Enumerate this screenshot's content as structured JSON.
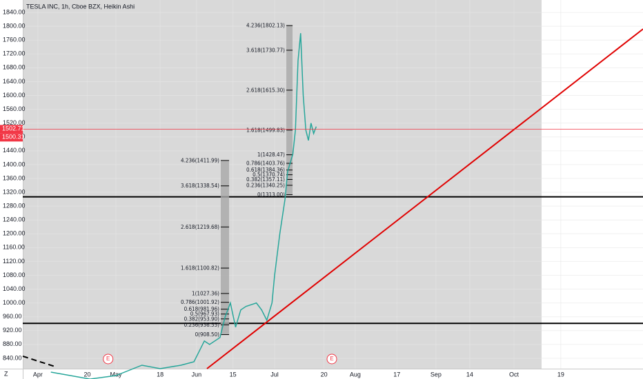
{
  "chart_data": {
    "type": "line",
    "title": "TESLA INC, 1h, Cboe BZX, Heikin Ashi",
    "x": [
      5,
      20,
      30,
      40,
      47,
      55,
      60,
      64,
      66,
      70,
      72,
      74,
      76,
      78,
      80,
      84,
      86,
      88,
      90,
      91,
      93,
      95,
      96,
      98,
      99,
      100,
      101,
      102,
      103,
      104,
      105,
      106,
      107
    ],
    "series": [
      {
        "color": "#26a69a",
        "values": [
          800,
          780,
          790,
          820,
          810,
          820,
          830,
          890,
          880,
          900,
          960,
          1000,
          930,
          980,
          990,
          1000,
          980,
          950,
          1000,
          1080,
          1200,
          1300,
          1380,
          1430,
          1500,
          1700,
          1780,
          1600,
          1500,
          1470,
          1520,
          1490,
          1510
        ]
      }
    ],
    "xlim": [
      -5.8,
      232.6
    ],
    "xticks": [
      {
        "value": 0,
        "label": "Apr"
      },
      {
        "value": 19,
        "label": "20"
      },
      {
        "value": 30,
        "label": "May"
      },
      {
        "value": 47,
        "label": "18"
      },
      {
        "value": 61,
        "label": "Jun"
      },
      {
        "value": 75,
        "label": "15"
      },
      {
        "value": 91,
        "label": "Jul"
      },
      {
        "value": 110,
        "label": "20"
      },
      {
        "value": 122,
        "label": "Aug"
      },
      {
        "value": 138,
        "label": "17"
      },
      {
        "value": 153,
        "label": "Sep"
      },
      {
        "value": 166,
        "label": "14"
      },
      {
        "value": 183,
        "label": "Oct"
      },
      {
        "value": 201,
        "label": "19"
      }
    ],
    "ylim": [
      810,
      1876
    ],
    "yticks": [
      {
        "value": 840,
        "label": "840.00"
      },
      {
        "value": 880,
        "label": "880.00"
      },
      {
        "value": 920,
        "label": "920.00"
      },
      {
        "value": 960,
        "label": "960.00"
      },
      {
        "value": 1000,
        "label": "1000.00"
      },
      {
        "value": 1040,
        "label": "1040.00"
      },
      {
        "value": 1080,
        "label": "1080.00"
      },
      {
        "value": 1120,
        "label": "1120.00"
      },
      {
        "value": 1160,
        "label": "1160.00"
      },
      {
        "value": 1200,
        "label": "1200.00"
      },
      {
        "value": 1240,
        "label": "1240.00"
      },
      {
        "value": 1280,
        "label": "1280.00"
      },
      {
        "value": 1320,
        "label": "1320.00"
      },
      {
        "value": 1360,
        "label": "1360.00"
      },
      {
        "value": 1400,
        "label": "1400.00"
      },
      {
        "value": 1440,
        "label": "1440.00"
      },
      {
        "value": 1480,
        "label": "1480.00"
      },
      {
        "value": 1520,
        "label": "1520.00"
      },
      {
        "value": 1560,
        "label": "1560.00"
      },
      {
        "value": 1600,
        "label": "1600.00"
      },
      {
        "value": 1640,
        "label": "1640.00"
      },
      {
        "value": 1680,
        "label": "1680.00"
      },
      {
        "value": 1720,
        "label": "1720.00"
      },
      {
        "value": 1760,
        "label": "1760.00"
      },
      {
        "value": 1800,
        "label": "1800.00"
      },
      {
        "value": 1840,
        "label": "1840.00"
      }
    ],
    "grid": true,
    "fibs": [
      {
        "x": [
          95.5,
          97.9
        ],
        "levels": [
          {
            "value": 1802.13,
            "label": "4.236(1802.13)"
          },
          {
            "value": 1730.77,
            "label": "3.618(1730.77)"
          },
          {
            "value": 1615.3,
            "label": "2.618(1615.30)"
          },
          {
            "value": 1499.83,
            "label": "1.618(1499.83)"
          },
          {
            "value": 1428.47,
            "label": "1(1428.47)"
          },
          {
            "value": 1403.76,
            "label": "0.786(1403.76)"
          },
          {
            "value": 1384.36,
            "label": "0.618(1384.36)"
          },
          {
            "value": 1370.74,
            "label": "0.5(1370.74)"
          },
          {
            "value": 1357.11,
            "label": "0.382(1357.11)"
          },
          {
            "value": 1340.25,
            "label": "0.236(1340.25)"
          },
          {
            "value": 1313.0,
            "label": "0(1313.00)"
          }
        ]
      },
      {
        "x": [
          70.3,
          73.5
        ],
        "levels": [
          {
            "value": 1411.99,
            "label": "4.236(1411.99)"
          },
          {
            "value": 1338.54,
            "label": "3.618(1338.54)"
          },
          {
            "value": 1219.68,
            "label": "2.618(1219.68)"
          },
          {
            "value": 1100.82,
            "label": "1.618(1100.82)"
          },
          {
            "value": 1027.36,
            "label": "1(1027.36)"
          },
          {
            "value": 1001.92,
            "label": "0.786(1001.92)"
          },
          {
            "value": 981.96,
            "label": "0.618(981.96)"
          },
          {
            "value": 967.93,
            "label": "0.5(967.93)"
          },
          {
            "value": 953.9,
            "label": "0.382(953.90)"
          },
          {
            "value": 936.55,
            "label": "0.236(936.55)"
          },
          {
            "value": 908.5,
            "label": "0(908.50)"
          }
        ]
      }
    ],
    "hlines": [
      {
        "value": 1307,
        "color": "#000000"
      },
      {
        "value": 941,
        "color": "#000000"
      }
    ],
    "trendlines": [
      {
        "x": [
          65,
          232.6
        ],
        "y": [
          810,
          1792
        ],
        "color": "#e00000",
        "dashed": false
      },
      {
        "x": [
          -5.8,
          6.6
        ],
        "y": [
          846,
          816
        ],
        "color": "#000000",
        "dashed": true
      }
    ],
    "price_line": {
      "color": "#f23645",
      "values": [
        1502.71,
        1500.31
      ]
    },
    "events": [
      {
        "x": 27,
        "label": "E"
      },
      {
        "x": 113,
        "label": "E"
      }
    ],
    "corner_label": "Z"
  }
}
